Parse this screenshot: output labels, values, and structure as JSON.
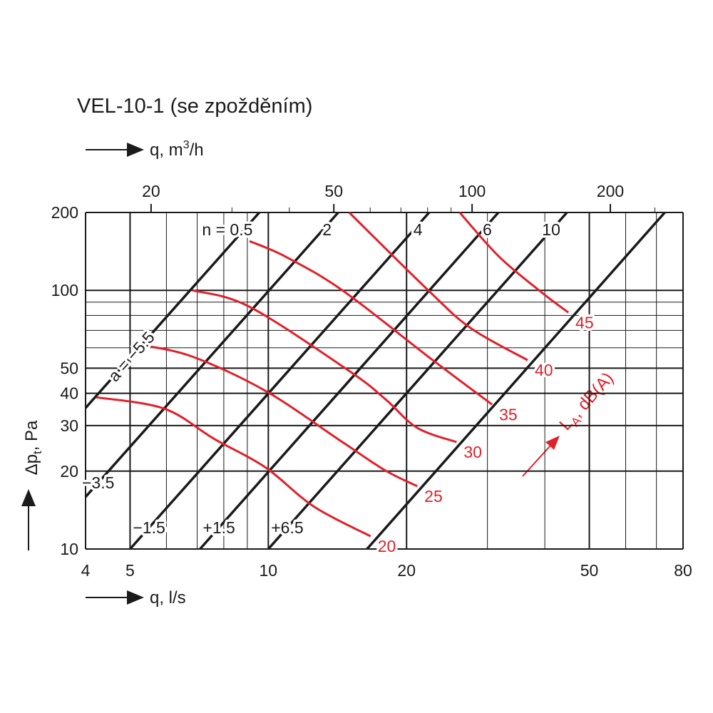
{
  "chart_data": {
    "type": "line",
    "title": "VEL-10-1 (se zpožděním)",
    "x_label": "q, l/s",
    "x2_label": {
      "main": "q, m",
      "sup": "3",
      "rest": "/h"
    },
    "y_label": {
      "main": "Δp",
      "sub": "t",
      "rest": ", Pa"
    },
    "log_x": true,
    "log_y": true,
    "xlim": [
      4,
      80
    ],
    "xticks": [
      4,
      5,
      10,
      20,
      50,
      80
    ],
    "xminor": [
      6,
      7,
      8,
      9,
      30,
      40,
      60,
      70
    ],
    "x2lim": [
      14.4,
      288
    ],
    "x2ticks": [
      20,
      50,
      100,
      200
    ],
    "x2minor": [
      30,
      40,
      60,
      70,
      80,
      90,
      250
    ],
    "ylim": [
      10,
      200
    ],
    "yticks": [
      10,
      20,
      30,
      40,
      50,
      100,
      200
    ],
    "yminor": [
      60,
      70,
      80,
      90
    ],
    "line_color": "#1a1a1a",
    "lines": [
      {
        "n_label": "n = 0.5",
        "a_label": "a = −5.5",
        "x": [
          4,
          9.56
        ],
        "y": [
          35.1,
          200
        ]
      },
      {
        "n_label": "2",
        "a_label": "−3.5",
        "x": [
          4,
          14.2
        ],
        "y": [
          15.9,
          200
        ]
      },
      {
        "n_label": "4",
        "a_label": "−1.5",
        "x": [
          5,
          22.4
        ],
        "y": [
          10,
          200
        ]
      },
      {
        "n_label": "6",
        "a_label": "+1.5",
        "x": [
          7.1,
          31.7
        ],
        "y": [
          10,
          200
        ]
      },
      {
        "n_label": "10",
        "a_label": "+6.5",
        "x": [
          10,
          44.7
        ],
        "y": [
          10,
          200
        ]
      },
      {
        "x": [
          16.4,
          73
        ],
        "y": [
          10,
          200
        ]
      }
    ],
    "series": [
      {
        "name": "20",
        "color": "#e0202a",
        "x": [
          4.22,
          5.93,
          7.61,
          9.85,
          12.56,
          16.7
        ],
        "values": [
          38.6,
          34.9,
          26.7,
          20.7,
          14.6,
          11.2
        ]
      },
      {
        "name": "25",
        "color": "#e0202a",
        "x": [
          5.32,
          6.84,
          9.85,
          14.5,
          18.0,
          21.1
        ],
        "values": [
          61.4,
          55.4,
          40.9,
          25.9,
          20.1,
          17.5
        ]
      },
      {
        "name": "30",
        "color": "#e0202a",
        "x": [
          6.84,
          9.1,
          15.0,
          18.0,
          21.1,
          25.7
        ],
        "values": [
          100,
          86.4,
          48.8,
          37.9,
          29.4,
          25.9
        ]
      },
      {
        "name": "35",
        "color": "#e0202a",
        "x": [
          9.1,
          10.9,
          14.5,
          22.3,
          30.7
        ],
        "values": [
          155,
          135,
          100,
          55.4,
          36.2
        ]
      },
      {
        "name": "40",
        "color": "#e0202a",
        "x": [
          15.0,
          22.3,
          27.6,
          36.7
        ],
        "values": [
          200,
          100,
          71.4,
          53.7
        ]
      },
      {
        "name": "45",
        "color": "#e0202a",
        "x": [
          26.1,
          31.8,
          39.4,
          45.0
        ],
        "values": [
          200,
          135,
          98.1,
          82.1
        ]
      }
    ],
    "annotation": {
      "main": "L",
      "sub": "A",
      "rest": ", dB(A)",
      "color": "#e0202a"
    }
  }
}
